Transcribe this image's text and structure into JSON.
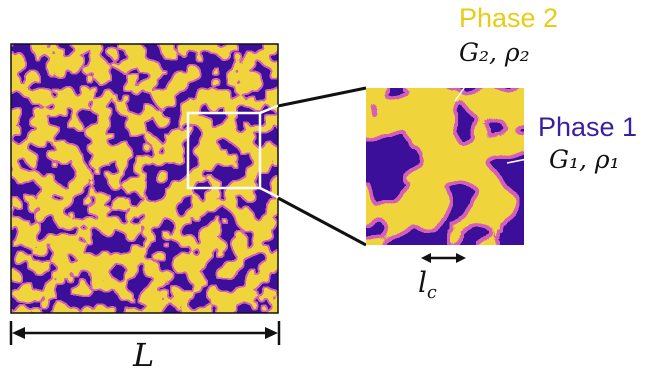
{
  "labels": {
    "phase2_title": "Phase 2",
    "phase2_params": "G₂, ρ₂",
    "phase1_title": "Phase 1",
    "phase1_params": "G₁, ρ₁",
    "correlation_length": "l_c",
    "system_size": "L"
  },
  "colors": {
    "phase1": "#3b0f9a",
    "phase2": "#f0d43a",
    "interface": "#d35fb7",
    "frame": "#111111",
    "zoom_box": "#ffffff"
  }
}
